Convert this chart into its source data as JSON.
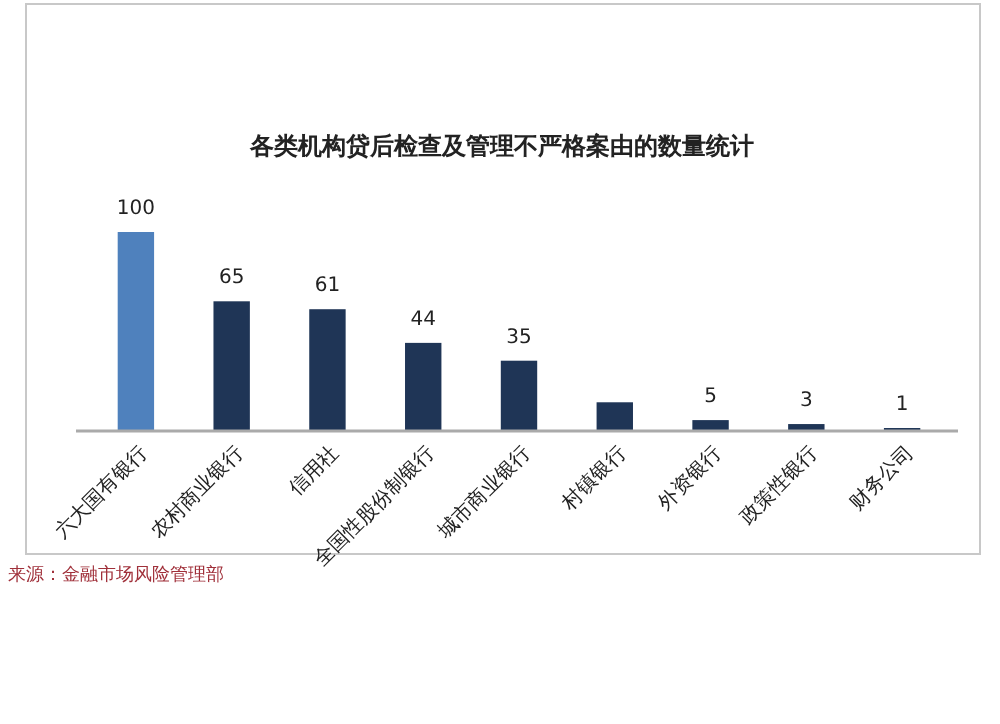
{
  "chart_data": {
    "type": "bar",
    "title": "各类机构贷后检查及管理不严格案由的数量统计",
    "categories": [
      "六大国有银行",
      "农村商业银行",
      "信用社",
      "全国性股份制银行",
      "城市商业银行",
      "村镇银行",
      "外资银行",
      "政策性银行",
      "财务公司"
    ],
    "values": [
      100,
      65,
      61,
      44,
      35,
      14,
      5,
      3,
      1
    ],
    "colors": [
      "#4f81bd",
      "#1f3556",
      "#1f3556",
      "#1f3556",
      "#1f3556",
      "#1f3556",
      "#1f3556",
      "#1f3556",
      "#1f3556"
    ],
    "value_labels": [
      "100",
      "65",
      "61",
      "44",
      "35",
      null,
      "5",
      "3",
      "1"
    ],
    "annotations": [
      "来源：金融市场风险管理部"
    ]
  }
}
